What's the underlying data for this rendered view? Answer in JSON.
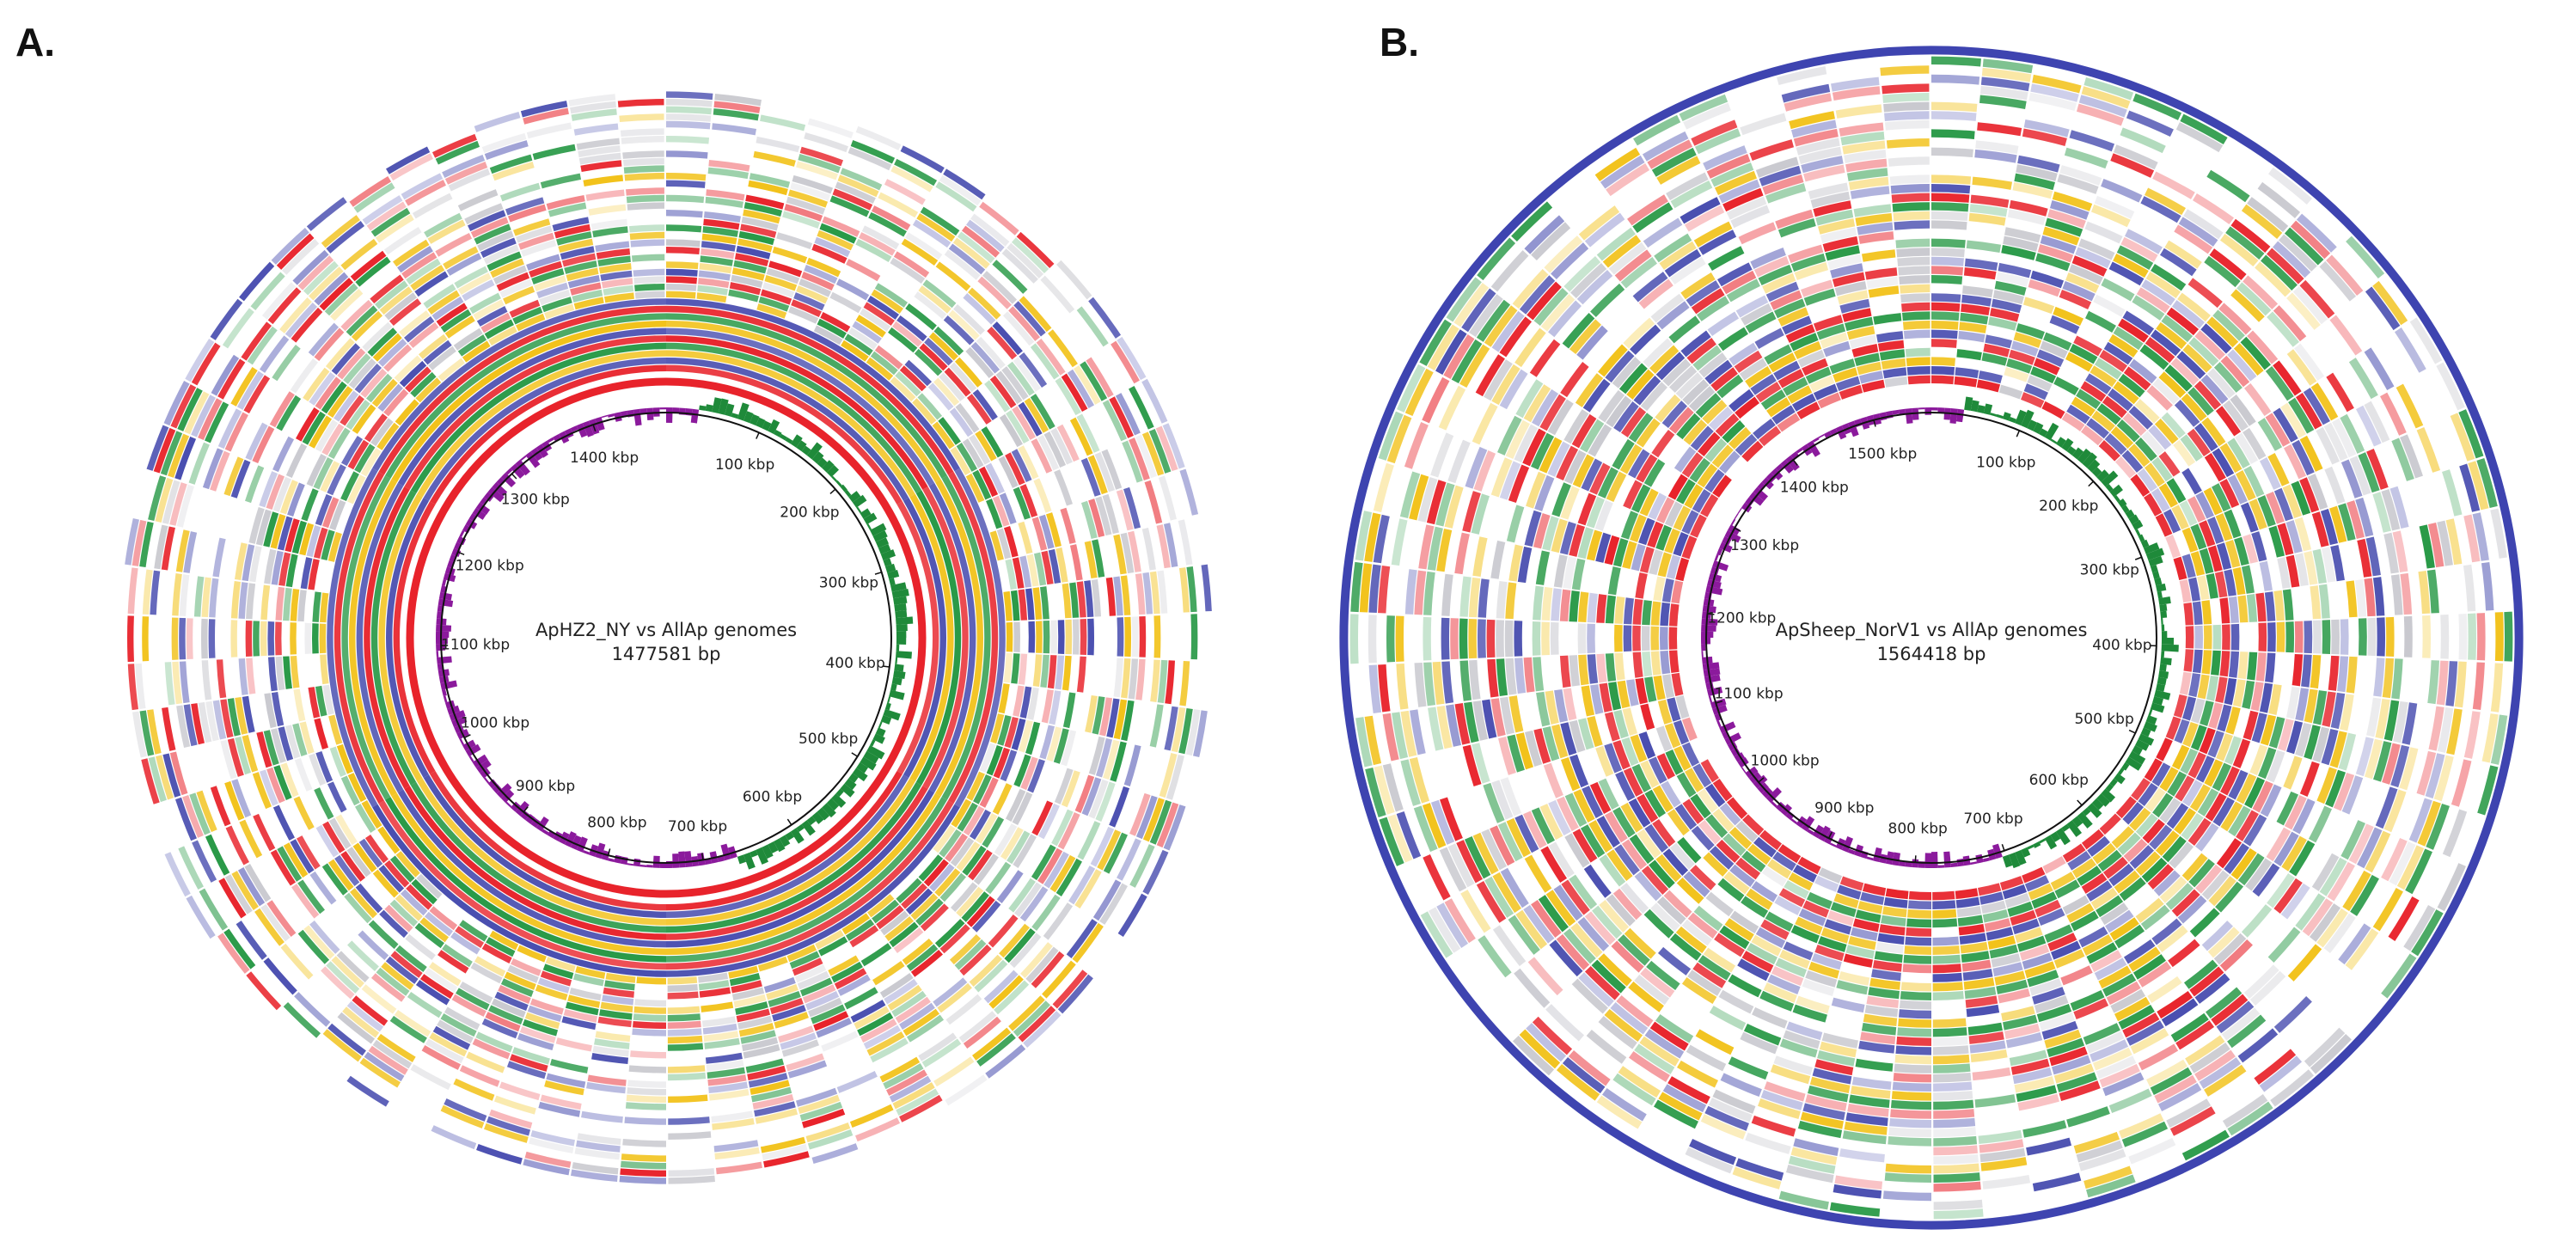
{
  "panels": [
    {
      "letter": "A.",
      "title": "ApHZ2_NY vs AllAp genomes",
      "length": "1477581 bp",
      "total_kbp": 1477.581,
      "ticks": [
        "100 kbp",
        "200 kbp",
        "300 kbp",
        "400 kbp",
        "500 kbp",
        "600 kbp",
        "700 kbp",
        "800 kbp",
        "900 kbp",
        "1000 kbp",
        "1100 kbp",
        "1200 kbp",
        "1300 kbp",
        "1400 kbp"
      ],
      "ring_colors": [
        "#e8232b",
        "#4a4fb0",
        "#f2c21b",
        "#2a9a48",
        "#e8232b",
        "#4a4fb0",
        "#f2c21b",
        "#2a9a48",
        "#e8232b",
        "#4a4fb0",
        "#f2c21b",
        "#2a9a48",
        "#e8232b",
        "#4a4fb0",
        "#f2c21b",
        "#2a9a48",
        "#e8232b",
        "#4a4fb0",
        "#f2c21b",
        "#2a9a48",
        "#e8232b",
        "#4a4fb0",
        "#f2c21b",
        "#2a9a48",
        "#e8232b",
        "#4a4fb0",
        "#f2c21b",
        "#2a9a48",
        "#e8232b",
        "#4a4fb0",
        "#f2c21b",
        "#2a9a48",
        "#e8232b",
        "#4a4fb0",
        "#f2c21b",
        "#2a9a48",
        "#e8232b",
        "#4a4fb0"
      ],
      "gc_positive_color": "#1f8a3a",
      "gc_negative_color": "#8b1a9c",
      "outer_band_color": "#4a4fb0"
    },
    {
      "letter": "B.",
      "title": "ApSheep_NorV1 vs AllAp genomes",
      "length": "1564418 bp",
      "total_kbp": 1564.418,
      "ticks": [
        "100 kbp",
        "200 kbp",
        "300 kbp",
        "400 kbp",
        "500 kbp",
        "600 kbp",
        "700 kbp",
        "800 kbp",
        "900 kbp",
        "1000 kbp",
        "1100 kbp",
        "1200 kbp",
        "1300 kbp",
        "1400 kbp",
        "1500 kbp"
      ],
      "ring_colors": [
        "#e8232b",
        "#4a4fb0",
        "#f2c21b",
        "#2a9a48",
        "#e8232b",
        "#4a4fb0",
        "#f2c21b",
        "#2a9a48",
        "#e8232b",
        "#4a4fb0",
        "#f2c21b",
        "#2a9a48",
        "#e8232b",
        "#4a4fb0",
        "#f2c21b",
        "#2a9a48",
        "#e8232b",
        "#4a4fb0",
        "#f2c21b",
        "#2a9a48",
        "#e8232b",
        "#4a4fb0",
        "#f2c21b",
        "#2a9a48",
        "#e8232b",
        "#4a4fb0",
        "#f2c21b",
        "#2a9a48",
        "#e8232b",
        "#4a4fb0",
        "#f2c21b",
        "#2a9a48",
        "#e8232b",
        "#4a4fb0",
        "#f2c21b",
        "#2a9a48"
      ],
      "gc_positive_color": "#1f8a3a",
      "gc_negative_color": "#8b1a9c",
      "outer_band_color": "#3e44b0"
    }
  ]
}
